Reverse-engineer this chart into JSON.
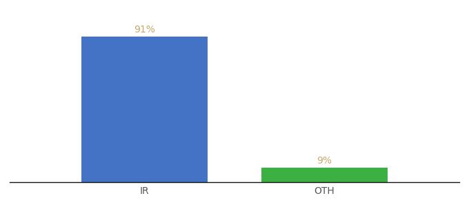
{
  "categories": [
    "IR",
    "OTH"
  ],
  "values": [
    91,
    9
  ],
  "bar_colors": [
    "#4472c4",
    "#3cb043"
  ],
  "label_color": "#c8a86b",
  "label_fontsize": 10,
  "tick_fontsize": 10,
  "background_color": "#ffffff",
  "ylim": [
    0,
    105
  ],
  "bar_width": 0.28,
  "bar_positions": [
    0.3,
    0.7
  ],
  "value_labels": [
    "91%",
    "9%"
  ],
  "xlim": [
    0,
    1
  ]
}
